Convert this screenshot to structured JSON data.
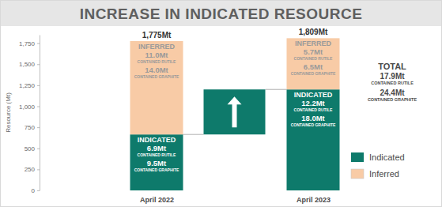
{
  "chart_data": {
    "type": "bar",
    "title": "INCREASE IN INDICATED RESOURCE",
    "y_label": "Resource (Mt)",
    "categories": [
      "April 2022",
      "April 2023"
    ],
    "stacked": true,
    "grid": false,
    "legend": "right",
    "ylim": [
      0,
      1850
    ],
    "yticks": [
      0,
      250,
      500,
      750,
      {
        "value": 1000,
        "label": "1,000"
      },
      {
        "value": 1250,
        "label": "1,250"
      },
      {
        "value": 1500,
        "label": "1,500"
      },
      {
        "value": 1750,
        "label": "1,750"
      }
    ],
    "series": [
      {
        "name": "Indicated",
        "color": "#0e7a6b",
        "values": [
          665,
          1200
        ],
        "segment_labels": [
          [
            "INDICATED",
            "6.9Mt",
            "CONTAINED RUTILE",
            "9.5Mt",
            "CONTAINED GRAPHITE"
          ],
          [
            "INDICATED",
            "12.2Mt",
            "CONTAINED RUTILE",
            "18.0Mt",
            "CONTAINED GRAPHITE"
          ]
        ]
      },
      {
        "name": "Inferred",
        "color": "#f8cba6",
        "values": [
          1110,
          609
        ],
        "segment_labels": [
          [
            "INFERRED",
            "11.0Mt",
            "CONTAINED RUTILE",
            "14.0Mt",
            "CONTAINED GRAPHITE"
          ],
          [
            "INFERRED",
            "5.7Mt",
            "CONTAINED RUTILE",
            "6.5Mt",
            "CONTAINED GRAPHITE"
          ]
        ]
      }
    ],
    "total_labels": [
      "1,775Mt",
      "1,809Mt"
    ],
    "total_box": {
      "heading": "TOTAL",
      "lines": [
        "17.9Mt",
        "CONTAINED RUTILE",
        "24.4Mt",
        "CONTAINED GRAPHITE"
      ]
    }
  }
}
